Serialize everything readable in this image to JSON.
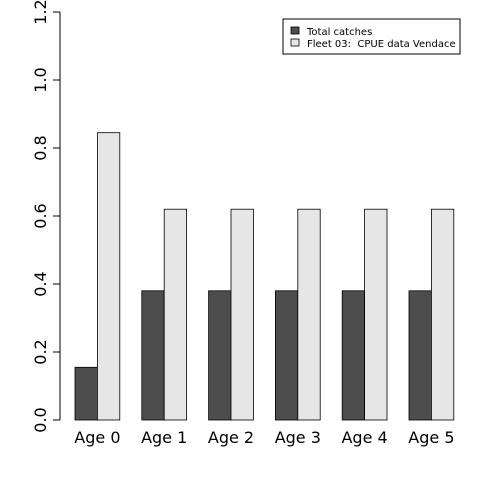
{
  "chart_data": {
    "type": "bar",
    "categories": [
      "Age 0",
      "Age 1",
      "Age 2",
      "Age 3",
      "Age 4",
      "Age 5"
    ],
    "series": [
      {
        "name": "Total catches",
        "values": [
          0.155,
          0.38,
          0.38,
          0.38,
          0.38,
          0.38
        ],
        "color": "#4d4d4d"
      },
      {
        "name": "Fleet 03:  CPUE data Vendace",
        "values": [
          0.845,
          0.62,
          0.62,
          0.62,
          0.62,
          0.62
        ],
        "color": "#e6e6e6"
      }
    ],
    "ylim": [
      0,
      1.2
    ],
    "yticks": [
      "0.0",
      "0.2",
      "0.4",
      "0.6",
      "0.8",
      "1.0",
      "1.2"
    ],
    "title": "",
    "xlabel": "",
    "ylabel": "",
    "legend_position": "top-right",
    "grid": false
  }
}
